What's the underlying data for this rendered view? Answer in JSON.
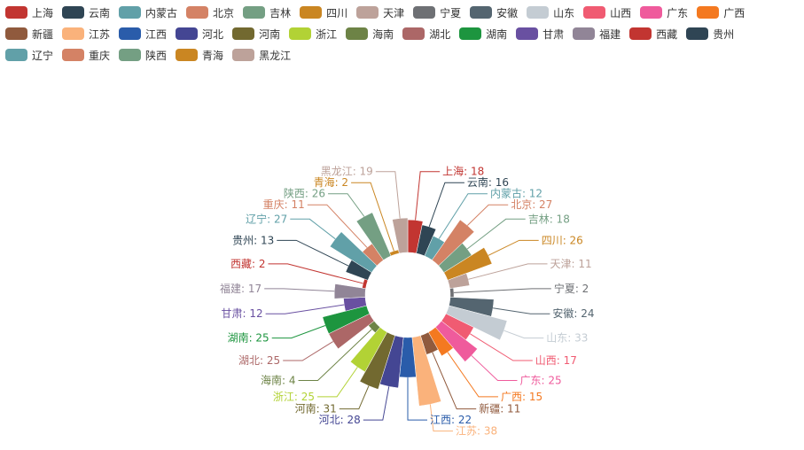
{
  "chart_data": {
    "type": "pie",
    "rose_type": "radius",
    "title": "",
    "legend_placement": "top-left",
    "label_separator": ": ",
    "categories": [
      "上海",
      "云南",
      "内蒙古",
      "北京",
      "吉林",
      "四川",
      "天津",
      "宁夏",
      "安徽",
      "山东",
      "山西",
      "广东",
      "广西",
      "新疆",
      "江苏",
      "江西",
      "河北",
      "河南",
      "浙江",
      "海南",
      "湖北",
      "湖南",
      "甘肃",
      "福建",
      "西藏",
      "贵州",
      "辽宁",
      "重庆",
      "陕西",
      "青海",
      "黑龙江"
    ],
    "values": [
      18,
      16,
      12,
      27,
      18,
      26,
      11,
      2,
      24,
      33,
      17,
      25,
      15,
      11,
      38,
      22,
      28,
      31,
      25,
      4,
      25,
      25,
      12,
      17,
      2,
      13,
      27,
      11,
      26,
      2,
      19
    ],
    "colors": [
      "#c23531",
      "#2f4554",
      "#61a0a8",
      "#d48265",
      "#749f83",
      "#ca8622",
      "#bda29a",
      "#6e7074",
      "#546570",
      "#c4ccd3",
      "#f05b72",
      "#ef5b9c",
      "#f47920",
      "#905a3d",
      "#fab27b",
      "#2a5caa",
      "#444693",
      "#726930",
      "#b2d235",
      "#6d8346",
      "#ac6767",
      "#1d953f",
      "#6950a1",
      "#918597",
      "#c23531",
      "#2f4554",
      "#61a0a8",
      "#d48265",
      "#749f83",
      "#ca8622",
      "#bda29a"
    ]
  }
}
